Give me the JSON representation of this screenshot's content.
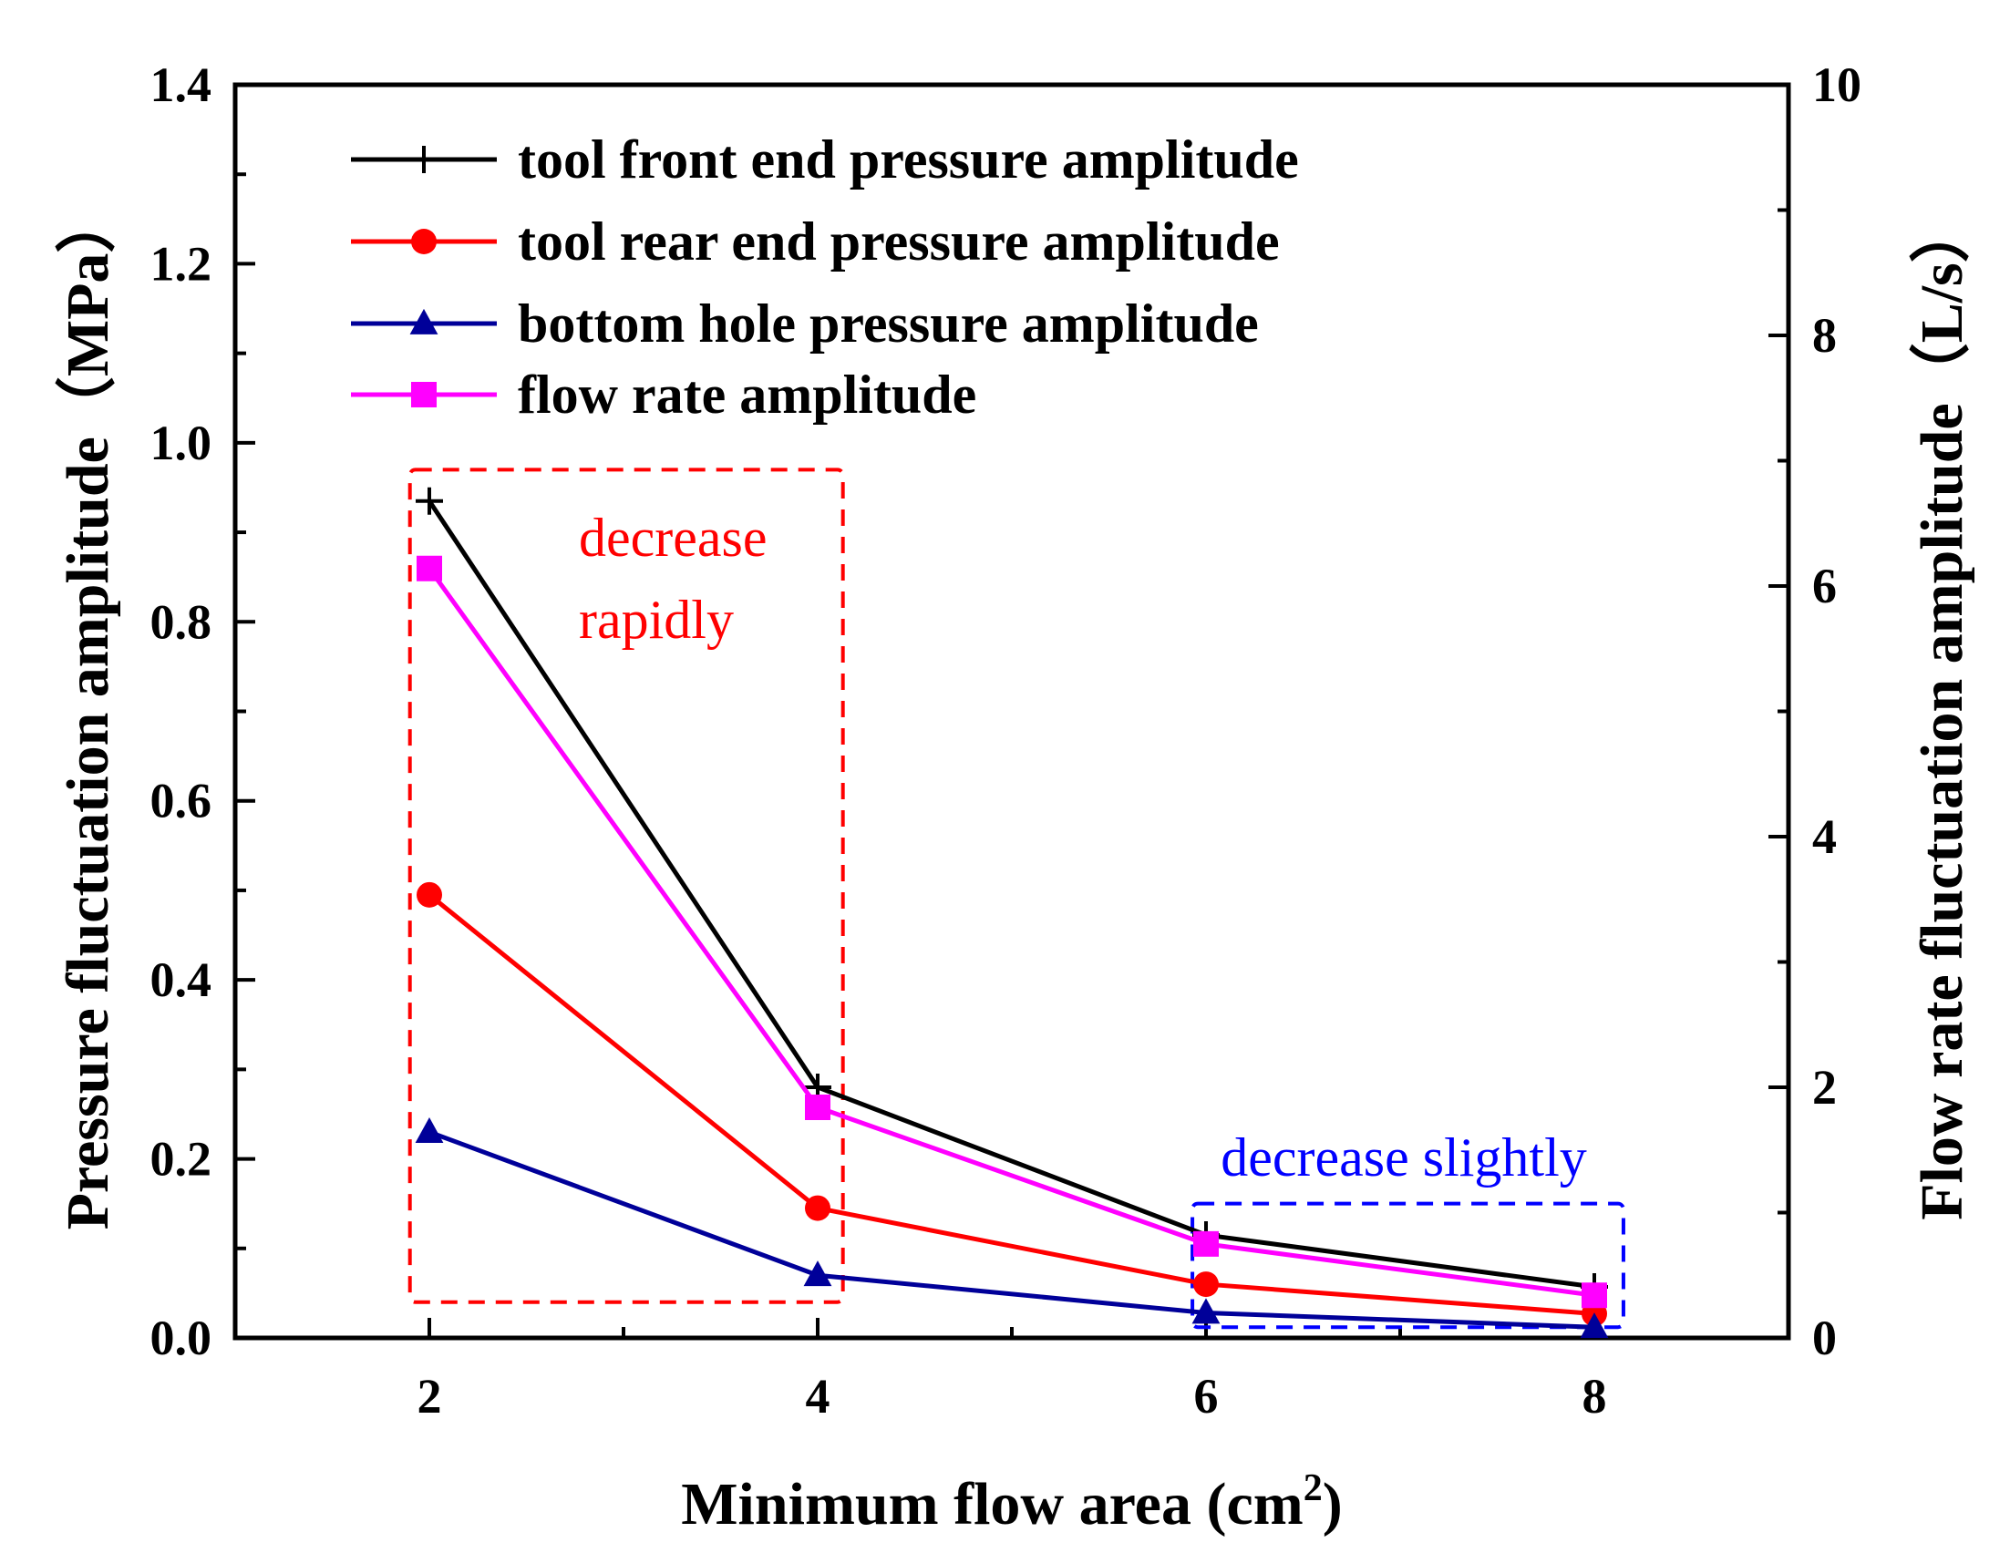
{
  "chart_data": {
    "type": "line",
    "x": [
      2,
      4,
      6,
      8
    ],
    "xlabel": "Minimum flow area (cm",
    "xlabel_superscript": "2",
    "xlabel_suffix": ")",
    "xlim": [
      1,
      9
    ],
    "xticks": [
      2,
      4,
      6,
      8
    ],
    "ylabel_left": "Pressure fluctuation amplitude（MPa）",
    "ylim_left": [
      0.0,
      1.4
    ],
    "yticks_left": [
      "0.0",
      "0.2",
      "0.4",
      "0.6",
      "0.8",
      "1.0",
      "1.2",
      "1.4"
    ],
    "ylabel_right": "Flow rate fluctuation amplitude（L/s）",
    "ylim_right": [
      0,
      10
    ],
    "yticks_right": [
      "0",
      "2",
      "4",
      "6",
      "8",
      "10"
    ],
    "grid": false,
    "legend_position": "top-left",
    "series": [
      {
        "name": "tool front end pressure amplitude",
        "axis": "left",
        "color": "#000000",
        "marker": "plus",
        "values": [
          0.935,
          0.28,
          0.115,
          0.057
        ]
      },
      {
        "name": "tool rear end pressure amplitude",
        "axis": "left",
        "color": "#ff0000",
        "marker": "circle",
        "values": [
          0.495,
          0.145,
          0.06,
          0.027
        ]
      },
      {
        "name": "bottom hole pressure amplitude",
        "axis": "left",
        "color": "#000099",
        "marker": "triangle",
        "values": [
          0.23,
          0.07,
          0.028,
          0.012
        ]
      },
      {
        "name": "flow rate amplitude",
        "axis": "right",
        "color": "#ff00ff",
        "marker": "square",
        "values": [
          6.14,
          1.84,
          0.75,
          0.34
        ]
      }
    ],
    "annotations": [
      {
        "lines": [
          "decrease",
          "rapidly"
        ],
        "color": "#ff0000",
        "region": "x 2-4"
      },
      {
        "lines": [
          "decrease slightly"
        ],
        "color": "#0000ff",
        "region": "x 6-8"
      }
    ]
  }
}
